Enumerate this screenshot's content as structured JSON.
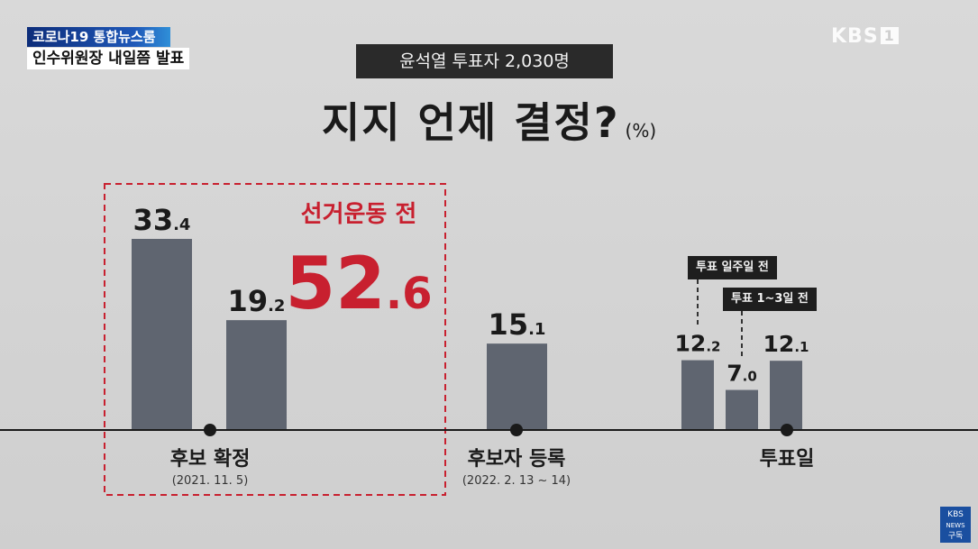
{
  "news": {
    "tag": "코로나19 통합뉴스룸",
    "headline": "인수위원장 내일쯤 발표"
  },
  "logo": {
    "brand": "KBS",
    "channel": "1"
  },
  "corner_badge": {
    "line1": "KBS",
    "line2": "NEWS",
    "line3": "구독"
  },
  "chart_data": {
    "type": "bar",
    "subtitle": "윤석열 투표자 2,030명",
    "title": "지지 언제 결정?",
    "unit": "(%)",
    "bars": [
      {
        "value": 33.4,
        "int": "33",
        "dec": ".4"
      },
      {
        "value": 19.2,
        "int": "19",
        "dec": ".2"
      },
      {
        "value": 15.1,
        "int": "15",
        "dec": ".1"
      },
      {
        "value": 12.2,
        "int": "12",
        "dec": ".2"
      },
      {
        "value": 7.0,
        "int": "7",
        "dec": ".0"
      },
      {
        "value": 12.1,
        "int": "12",
        "dec": ".1"
      }
    ],
    "milestones": [
      {
        "label": "후보 확정",
        "date": "(2021. 11. 5)"
      },
      {
        "label": "후보자 등록",
        "date": "(2022. 2. 13 ~ 14)"
      },
      {
        "label": "투표일",
        "date": ""
      }
    ],
    "highlight": {
      "label": "선거운동 전",
      "int": "52",
      "dec": ".6",
      "value": 52.6
    },
    "callouts": [
      "투표 일주일 전",
      "투표 1~3일 전"
    ],
    "colors": {
      "bar": "#5f6570",
      "highlight": "#c8202f",
      "baseline": "#1a1a1a"
    }
  }
}
